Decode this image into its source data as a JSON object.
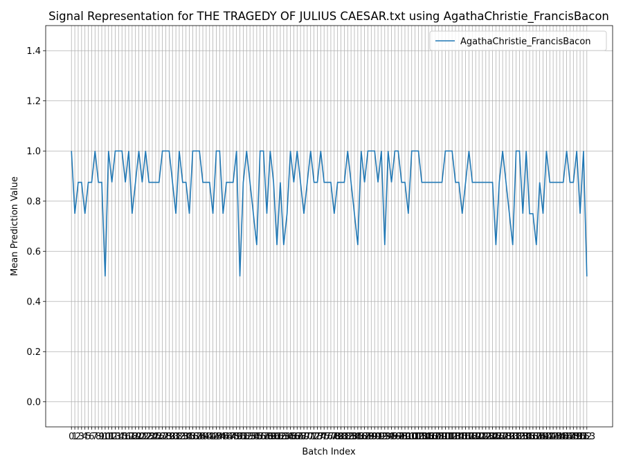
{
  "chart_data": {
    "type": "line",
    "title": "Signal Representation for THE TRAGEDY OF JULIUS CAESAR.txt using AgathaChristie_FrancisBacon",
    "xlabel": "Batch Index",
    "ylabel": "Mean Prediction Value",
    "x": [
      0,
      1,
      2,
      3,
      4,
      5,
      6,
      7,
      8,
      9,
      10,
      11,
      12,
      13,
      14,
      15,
      16,
      17,
      18,
      19,
      20,
      21,
      22,
      23,
      24,
      25,
      26,
      27,
      28,
      29,
      30,
      31,
      32,
      33,
      34,
      35,
      36,
      37,
      38,
      39,
      40,
      41,
      42,
      43,
      44,
      45,
      46,
      47,
      48,
      49,
      50,
      51,
      52,
      53,
      54,
      55,
      56,
      57,
      58,
      59,
      60,
      61,
      62,
      63,
      64,
      65,
      66,
      67,
      68,
      69,
      70,
      71,
      72,
      73,
      74,
      75,
      76,
      77,
      78,
      79,
      80,
      81,
      82,
      83,
      84,
      85,
      86,
      87,
      88,
      89,
      90,
      91,
      92,
      93,
      94,
      95,
      96,
      97,
      98,
      99,
      100,
      101,
      102,
      103,
      104,
      105,
      106,
      107,
      108,
      109,
      110,
      111,
      112,
      113,
      114,
      115,
      116,
      117,
      118,
      119,
      120,
      121,
      122,
      123,
      124,
      125,
      126,
      127,
      128,
      129,
      130,
      131,
      132,
      133,
      134,
      135,
      136,
      137,
      138,
      139,
      140,
      141,
      142,
      143,
      144,
      145,
      146,
      147,
      148,
      149,
      150,
      151,
      152,
      153
    ],
    "series": [
      {
        "name": "AgathaChristie_FrancisBacon",
        "color": "#1f77b4",
        "values": [
          1.0,
          0.75,
          0.875,
          0.875,
          0.75,
          0.875,
          0.875,
          1.0,
          0.875,
          0.875,
          0.5,
          1.0,
          0.875,
          1.0,
          1.0,
          1.0,
          0.875,
          1.0,
          0.75,
          0.875,
          1.0,
          0.875,
          1.0,
          0.875,
          0.875,
          0.875,
          0.875,
          1.0,
          1.0,
          1.0,
          0.875,
          0.75,
          1.0,
          0.875,
          0.875,
          0.75,
          1.0,
          1.0,
          1.0,
          0.875,
          0.875,
          0.875,
          0.75,
          1.0,
          1.0,
          0.75,
          0.875,
          0.875,
          0.875,
          1.0,
          0.5,
          0.875,
          1.0,
          0.875,
          0.75,
          0.625,
          1.0,
          1.0,
          0.75,
          1.0,
          0.875,
          0.625,
          0.875,
          0.625,
          0.75,
          1.0,
          0.875,
          1.0,
          0.875,
          0.75,
          0.875,
          1.0,
          0.875,
          0.875,
          1.0,
          0.875,
          0.875,
          0.875,
          0.75,
          0.875,
          0.875,
          0.875,
          1.0,
          0.875,
          0.75,
          0.625,
          1.0,
          0.875,
          1.0,
          1.0,
          1.0,
          0.875,
          1.0,
          0.625,
          1.0,
          0.875,
          1.0,
          1.0,
          0.875,
          0.875,
          0.75,
          1.0,
          1.0,
          1.0,
          0.875,
          0.875,
          0.875,
          0.875,
          0.875,
          0.875,
          0.875,
          1.0,
          1.0,
          1.0,
          0.875,
          0.875,
          0.75,
          0.875,
          1.0,
          0.875,
          0.875,
          0.875,
          0.875,
          0.875,
          0.875,
          0.875,
          0.625,
          0.875,
          1.0,
          0.875,
          0.75,
          0.625,
          1.0,
          1.0,
          0.75,
          1.0,
          0.75,
          0.75,
          0.625,
          0.875,
          0.75,
          1.0,
          0.875,
          0.875,
          0.875,
          0.875,
          0.875,
          1.0,
          0.875,
          0.875,
          1.0,
          0.75,
          1.0,
          0.5
        ]
      }
    ],
    "xlim": [
      -7.65,
      160.65
    ],
    "xticks": [
      0,
      1,
      2,
      3,
      4,
      5,
      6,
      7,
      8,
      9,
      10,
      11,
      12,
      13,
      14,
      15,
      16,
      17,
      18,
      19,
      20,
      21,
      22,
      23,
      24,
      25,
      26,
      27,
      28,
      29,
      30,
      31,
      32,
      33,
      34,
      35,
      36,
      37,
      38,
      39,
      40,
      41,
      42,
      43,
      44,
      45,
      46,
      47,
      48,
      49,
      50,
      51,
      52,
      53,
      54,
      55,
      56,
      57,
      58,
      59,
      60,
      61,
      62,
      63,
      64,
      65,
      66,
      67,
      68,
      69,
      70,
      71,
      72,
      73,
      74,
      75,
      76,
      77,
      78,
      79,
      80,
      81,
      82,
      83,
      84,
      85,
      86,
      87,
      88,
      89,
      90,
      91,
      92,
      93,
      94,
      95,
      96,
      97,
      98,
      99,
      100,
      101,
      102,
      103,
      104,
      105,
      106,
      107,
      108,
      109,
      110,
      111,
      112,
      113,
      114,
      115,
      116,
      117,
      118,
      119,
      120,
      121,
      122,
      123,
      124,
      125,
      126,
      127,
      128,
      129,
      130,
      131,
      132,
      133,
      134,
      135,
      136,
      137,
      138,
      139,
      140,
      141,
      142,
      143,
      144,
      145,
      146,
      147,
      148,
      149,
      150,
      151,
      152,
      153
    ],
    "ylim": [
      -0.1,
      1.5
    ],
    "yticks": [
      {
        "value": 0,
        "label": "0.0"
      },
      {
        "value": 0.2,
        "label": "0.2"
      },
      {
        "value": 0.4,
        "label": "0.4"
      },
      {
        "value": 0.6,
        "label": "0.6"
      },
      {
        "value": 0.8,
        "label": "0.8"
      },
      {
        "value": 1,
        "label": "1.0"
      },
      {
        "value": 1.2,
        "label": "1.2"
      },
      {
        "value": 1.4,
        "label": "1.4"
      }
    ],
    "grid": true,
    "legend": "upper right"
  }
}
